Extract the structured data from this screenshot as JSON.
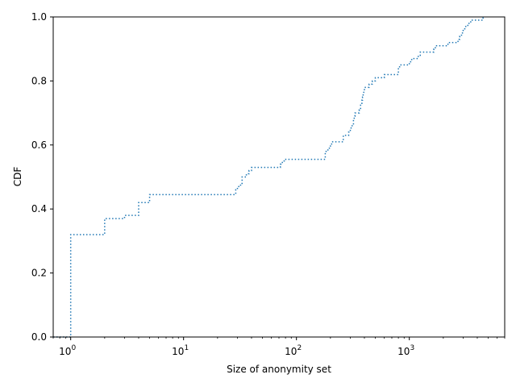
{
  "chart_data": {
    "type": "line",
    "style": "step",
    "line_style": "dotted",
    "xlabel": "Size of anonymity set",
    "ylabel": "CDF",
    "x_scale": "log",
    "xlim": [
      0.7,
      7000
    ],
    "ylim": [
      0.0,
      1.0
    ],
    "grid": false,
    "color": "#1f77b4",
    "x_tick_labels": [
      {
        "value": 1,
        "base": "10",
        "exp": "0"
      },
      {
        "value": 10,
        "base": "10",
        "exp": "1"
      },
      {
        "value": 100,
        "base": "10",
        "exp": "2"
      },
      {
        "value": 1000,
        "base": "10",
        "exp": "3"
      }
    ],
    "y_ticks": [
      "0.0",
      "0.2",
      "0.4",
      "0.6",
      "0.8",
      "1.0"
    ],
    "series": [
      {
        "x": [
          0.7,
          1,
          1,
          2,
          2,
          3,
          4,
          4,
          5,
          5,
          28,
          29,
          30,
          32,
          33,
          36,
          38,
          40,
          70,
          72,
          75,
          78,
          175,
          180,
          190,
          200,
          205,
          250,
          260,
          290,
          300,
          305,
          320,
          325,
          330,
          360,
          370,
          380,
          385,
          390,
          395,
          400,
          405,
          410,
          440,
          470,
          500,
          600,
          620,
          800,
          820,
          1000,
          1050,
          1200,
          1250,
          1600,
          1650,
          1700,
          2200,
          2300,
          2700,
          2800,
          2900,
          3000,
          3100,
          3300,
          3500,
          4500
        ],
        "y": [
          0.0,
          0.0,
          0.32,
          0.36,
          0.37,
          0.38,
          0.4,
          0.42,
          0.43,
          0.445,
          0.445,
          0.46,
          0.47,
          0.48,
          0.5,
          0.51,
          0.52,
          0.53,
          0.53,
          0.54,
          0.55,
          0.555,
          0.555,
          0.58,
          0.59,
          0.6,
          0.61,
          0.61,
          0.63,
          0.64,
          0.65,
          0.66,
          0.68,
          0.69,
          0.7,
          0.71,
          0.73,
          0.74,
          0.75,
          0.76,
          0.77,
          0.78,
          0.78,
          0.78,
          0.79,
          0.8,
          0.81,
          0.82,
          0.82,
          0.84,
          0.85,
          0.86,
          0.87,
          0.88,
          0.89,
          0.89,
          0.9,
          0.91,
          0.92,
          0.92,
          0.93,
          0.94,
          0.95,
          0.96,
          0.97,
          0.98,
          0.99,
          1.0
        ]
      }
    ]
  }
}
